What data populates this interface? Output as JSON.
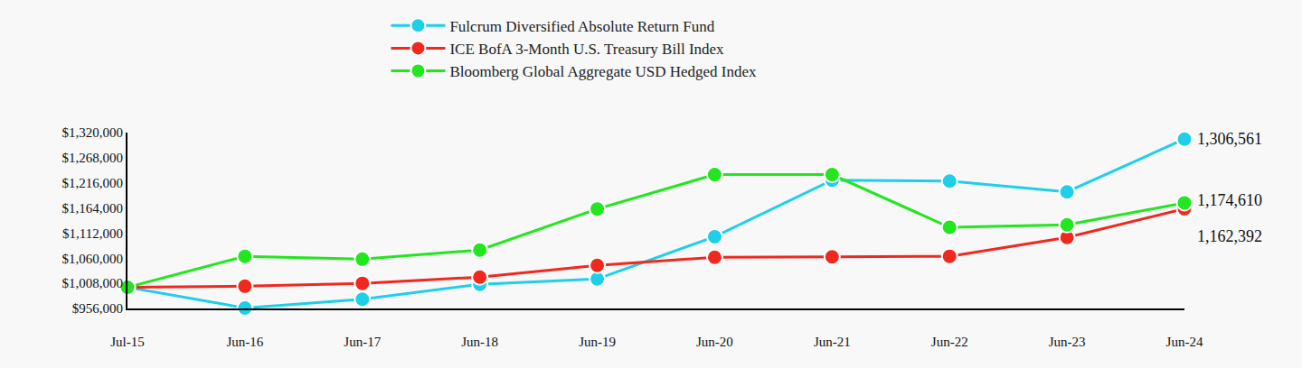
{
  "chart_data": {
    "type": "line",
    "categories": [
      "Jul-15",
      "Jun-16",
      "Jun-17",
      "Jun-18",
      "Jun-19",
      "Jun-20",
      "Jun-21",
      "Jun-22",
      "Jun-23",
      "Jun-24"
    ],
    "series": [
      {
        "name": "Fulcrum Diversified Absolute Return Fund",
        "color": "#1ecfe9",
        "marker": "circle",
        "values": [
          1000000,
          957000,
          975000,
          1006000,
          1017000,
          1104600,
          1221600,
          1219700,
          1197400,
          1306561
        ],
        "value_labels": [
          null,
          null,
          null,
          null,
          null,
          null,
          null,
          null,
          null,
          "1,306,561"
        ]
      },
      {
        "name": "ICE BofA 3-Month U.S. Treasury Bill Index",
        "color": "#f0281e",
        "marker": "circle",
        "values": [
          1000000,
          1002000,
          1008000,
          1021000,
          1045000,
          1062000,
          1063000,
          1064000,
          1103000,
          1162392
        ],
        "value_labels": [
          null,
          null,
          null,
          null,
          null,
          null,
          null,
          null,
          null,
          "1,162,392"
        ]
      },
      {
        "name": "Bloomberg Global Aggregate USD Hedged Index",
        "color": "#22e61e",
        "marker": "circle",
        "values": [
          1000000,
          1064000,
          1058000,
          1077000,
          1162000,
          1233000,
          1233000,
          1124000,
          1129000,
          1174610
        ],
        "value_labels": [
          null,
          null,
          null,
          null,
          null,
          null,
          null,
          null,
          null,
          "1,174,610"
        ]
      }
    ],
    "ylim": [
      956000,
      1320000
    ],
    "yticks": [
      {
        "value": 956000,
        "label": "$956,000"
      },
      {
        "value": 1008000,
        "label": "$1,008,000"
      },
      {
        "value": 1060000,
        "label": "$1,060,000"
      },
      {
        "value": 1112000,
        "label": "$1,112,000"
      },
      {
        "value": 1164000,
        "label": "$1,164,000"
      },
      {
        "value": 1216000,
        "label": "$1,216,000"
      },
      {
        "value": 1268000,
        "label": "$1,268,000"
      },
      {
        "value": 1320000,
        "label": "$1,320,000"
      }
    ],
    "grid": false,
    "legend": "top"
  }
}
